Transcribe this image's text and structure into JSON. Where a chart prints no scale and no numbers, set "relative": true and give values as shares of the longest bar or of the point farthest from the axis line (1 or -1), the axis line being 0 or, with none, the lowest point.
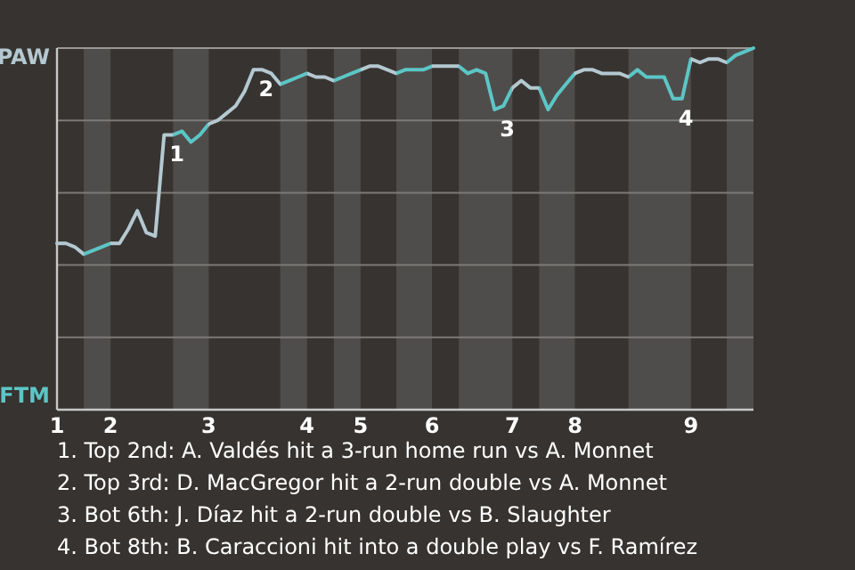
{
  "chart_data": {
    "type": "line",
    "relative": true,
    "grid": "y",
    "categories": [
      "1",
      null,
      null,
      null,
      null,
      null,
      "2",
      null,
      null,
      null,
      null,
      null,
      null,
      null,
      null,
      null,
      null,
      "3",
      null,
      null,
      null,
      null,
      null,
      null,
      null,
      null,
      null,
      null,
      "4",
      null,
      null,
      null,
      null,
      null,
      "5",
      null,
      null,
      null,
      null,
      null,
      null,
      null,
      "6",
      null,
      null,
      null,
      null,
      null,
      null,
      null,
      null,
      "7",
      null,
      null,
      null,
      null,
      null,
      null,
      "8",
      null,
      null,
      null,
      null,
      null,
      null,
      null,
      null,
      null,
      null,
      null,
      null,
      "9",
      null,
      null,
      null,
      null,
      null,
      null,
      null
    ],
    "series": [
      {
        "color": "#b4c8d0",
        "values": [
          0.46,
          0.46,
          0.45,
          0.43,
          0.44,
          0.45,
          0.46,
          0.46,
          0.5,
          0.55,
          0.49,
          0.48,
          0.76,
          0.76,
          0.77,
          0.74,
          0.76,
          0.79,
          0.8,
          0.82,
          0.84,
          0.88,
          0.94,
          0.94,
          0.93,
          0.9,
          0.91,
          0.92,
          0.93,
          0.92,
          0.92,
          0.91,
          0.92,
          0.93,
          0.94,
          0.95,
          0.95,
          0.94,
          0.93,
          0.94,
          0.94,
          0.94,
          0.95,
          0.95,
          0.95,
          0.95,
          0.93,
          0.94,
          0.93,
          0.83,
          0.84,
          0.89,
          0.91,
          0.89,
          0.89,
          0.83,
          0.87,
          0.9,
          0.93,
          0.94,
          0.94,
          0.93,
          0.93,
          0.93,
          0.92,
          0.94,
          0.92,
          0.92,
          0.92,
          0.86,
          0.86,
          0.97,
          0.96,
          0.97,
          0.97,
          0.96,
          0.98,
          0.99,
          1
        ],
        "colors": [
          "#b4c8d0",
          "#b4c8d0",
          "#b4c8d0",
          "#5cc6c6",
          "#5cc6c6",
          "#5cc6c6",
          "#b4c8d0",
          "#b4c8d0",
          "#b4c8d0",
          "#b4c8d0",
          "#b4c8d0",
          "#b4c8d0",
          "#b4c8d0",
          "#5cc6c6",
          "#5cc6c6",
          "#5cc6c6",
          "#5cc6c6",
          "#b4c8d0",
          "#b4c8d0",
          "#b4c8d0",
          "#b4c8d0",
          "#b4c8d0",
          "#b4c8d0",
          "#b4c8d0",
          "#b4c8d0",
          "#5cc6c6",
          "#5cc6c6",
          "#5cc6c6",
          "#b4c8d0",
          "#b4c8d0",
          "#b4c8d0",
          "#5cc6c6",
          "#5cc6c6",
          "#5cc6c6",
          "#b4c8d0",
          "#b4c8d0",
          "#b4c8d0",
          "#b4c8d0",
          "#5cc6c6",
          "#5cc6c6",
          "#5cc6c6",
          "#5cc6c6",
          "#b4c8d0",
          "#b4c8d0",
          "#b4c8d0",
          "#5cc6c6",
          "#5cc6c6",
          "#5cc6c6",
          "#5cc6c6",
          "#5cc6c6",
          "#5cc6c6",
          "#b4c8d0",
          "#b4c8d0",
          "#b4c8d0",
          "#5cc6c6",
          "#5cc6c6",
          "#5cc6c6",
          "#5cc6c6",
          "#b4c8d0",
          "#b4c8d0",
          "#b4c8d0",
          "#b4c8d0",
          "#b4c8d0",
          "#b4c8d0",
          "#5cc6c6",
          "#5cc6c6",
          "#5cc6c6",
          "#5cc6c6",
          "#5cc6c6",
          "#5cc6c6",
          "#5cc6c6",
          "#b4c8d0",
          "#b4c8d0",
          "#b4c8d0",
          "#b4c8d0",
          "#5cc6c6",
          "#5cc6c6",
          "#5cc6c6",
          "#5cc6c6"
        ]
      }
    ],
    "annotations": [
      "PAW",
      "FTM",
      {
        "text": "1",
        "y": 0.76
      },
      {
        "text": "2",
        "y": 0.94
      },
      {
        "text": "3",
        "y": 0.83
      },
      {
        "text": "4",
        "y": 0.86
      },
      "1. Top 2nd: A. Valdés hit a 3-run home run vs A. Monnet",
      "2. Top 3rd: D. MacGregor hit a 2-run double vs A. Monnet",
      "3. Bot 6th: J. Díaz hit a 2-run double vs B. Slaughter",
      "4. Bot 8th: B. Caraccioni hit into a double play vs F. Ramírez"
    ]
  }
}
